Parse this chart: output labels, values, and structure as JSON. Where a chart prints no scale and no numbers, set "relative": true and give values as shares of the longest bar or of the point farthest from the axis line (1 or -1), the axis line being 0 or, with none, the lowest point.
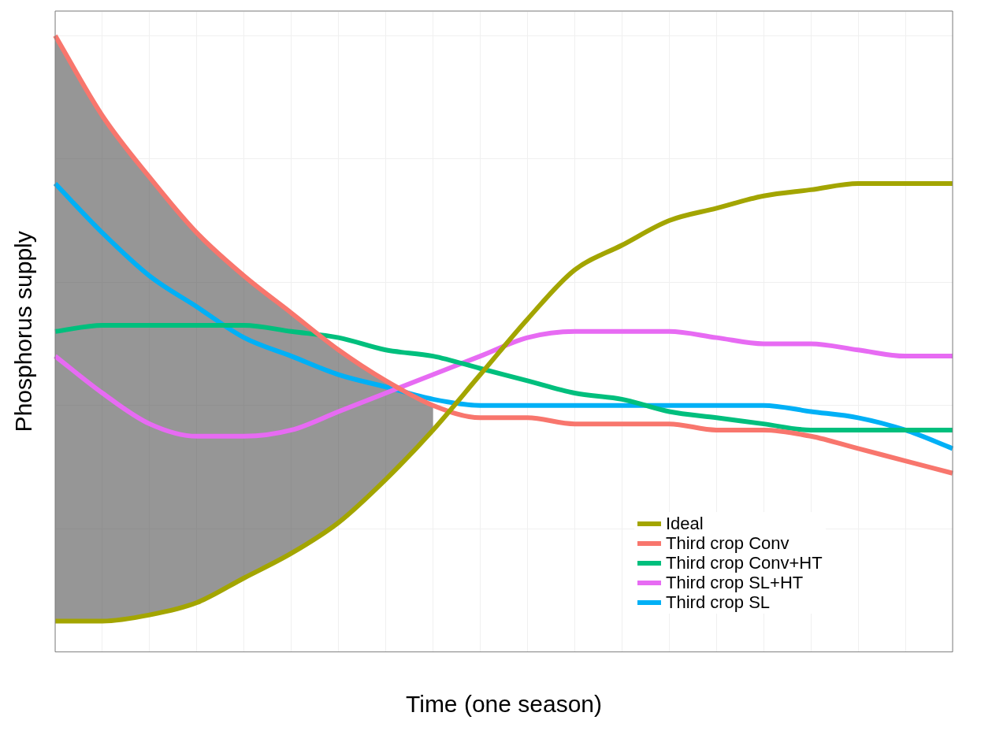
{
  "chart_data": {
    "type": "line",
    "relative": true,
    "xlabel": "Time (one season)",
    "ylabel": "Phosphorus supply",
    "grid": true,
    "legend": "bottom right",
    "marker": "none",
    "line_style": "solid",
    "categories": [
      null,
      null,
      null,
      null,
      null,
      null,
      null,
      null,
      null,
      null,
      null,
      null,
      null,
      null,
      null,
      null,
      null,
      null,
      null,
      null
    ],
    "series": [
      {
        "name": "Ideal",
        "color": "#a3a500",
        "values": [
          0.05,
          0.05,
          0.06,
          0.08,
          0.12,
          0.16,
          0.21,
          0.28,
          0.36,
          0.45,
          0.54,
          0.62,
          0.66,
          0.7,
          0.72,
          0.74,
          0.75,
          0.76,
          0.76,
          0.76
        ]
      },
      {
        "name": "Third crop Conv",
        "color": "#f8766d",
        "values": [
          1.0,
          0.87,
          0.77,
          0.68,
          0.61,
          0.55,
          0.49,
          0.44,
          0.4,
          0.38,
          0.38,
          0.37,
          0.37,
          0.37,
          0.36,
          0.36,
          0.35,
          0.33,
          0.31,
          0.29
        ],
        "lower": [
          0.05,
          0.05,
          0.06,
          0.08,
          0.12,
          0.16,
          0.21,
          0.28,
          0.36,
          null,
          null,
          null,
          null,
          null,
          null,
          null,
          null,
          null,
          null,
          null
        ],
        "upper": [
          1.0,
          0.87,
          0.77,
          0.68,
          0.61,
          0.55,
          0.49,
          0.44,
          0.4,
          null,
          null,
          null,
          null,
          null,
          null,
          null,
          null,
          null,
          null,
          null
        ]
      },
      {
        "name": "Third crop Conv+HT",
        "color": "#00bf7d",
        "values": [
          0.52,
          0.53,
          0.53,
          0.53,
          0.53,
          0.52,
          0.51,
          0.49,
          0.48,
          0.46,
          0.44,
          0.42,
          0.41,
          0.39,
          0.38,
          0.37,
          0.36,
          0.36,
          0.36,
          0.36
        ]
      },
      {
        "name": "Third crop SL+HT",
        "color": "#e76bf3",
        "values": [
          0.48,
          0.42,
          0.37,
          0.35,
          0.35,
          0.36,
          0.39,
          0.42,
          0.45,
          0.48,
          0.51,
          0.52,
          0.52,
          0.52,
          0.51,
          0.5,
          0.5,
          0.49,
          0.48,
          0.48
        ]
      },
      {
        "name": "Third crop SL",
        "color": "#00b0f6",
        "values": [
          0.76,
          0.68,
          0.61,
          0.56,
          0.51,
          0.48,
          0.45,
          0.43,
          0.41,
          0.4,
          0.4,
          0.4,
          0.4,
          0.4,
          0.4,
          0.4,
          0.39,
          0.38,
          0.36,
          0.33
        ]
      }
    ]
  }
}
